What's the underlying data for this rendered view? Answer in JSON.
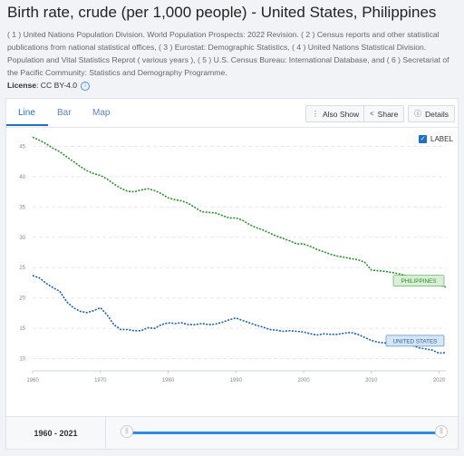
{
  "page": {
    "title": "Birth rate, crude (per 1,000 people) - United States, Philippines",
    "sources": "( 1 ) United Nations Population Division. World Population Prospects: 2022 Revision. ( 2 ) Census reports and other statistical publications from national statistical offices, ( 3 ) Eurostat: Demographic Statistics, ( 4 ) United Nations Statistical Division. Population and Vital Statistics Reprot ( various years ), ( 5 ) U.S. Census Bureau: International Database, and ( 6 ) Secretariat of the Pacific Community: Statistics and Demography Programme.",
    "license_label": "License",
    "license_value": ": CC BY-4.0"
  },
  "tabs": [
    {
      "label": "Line",
      "active": true
    },
    {
      "label": "Bar",
      "active": false
    },
    {
      "label": "Map",
      "active": false
    }
  ],
  "toolbar": {
    "also_show": "Also Show",
    "share": "Share",
    "details": "Details"
  },
  "label_toggle": {
    "text": "LABEL",
    "checked": true
  },
  "range": {
    "label": "1960 - 2021",
    "start": 1960,
    "end": 2021
  },
  "colors": {
    "accent": "#1f70c1",
    "philippines": "#2e8b2e",
    "united_states": "#1f5fa8",
    "philippines_label_bg": "#d8efd6",
    "us_label_bg": "#d6e6f5",
    "slider": "#2e8ce6"
  },
  "chart_data": {
    "type": "line",
    "title": "",
    "xlabel": "",
    "ylabel": "",
    "xlim": [
      1960,
      2021
    ],
    "ylim": [
      8,
      47
    ],
    "grid": true,
    "line_style": "dotted",
    "x_ticks": [
      1960,
      1970,
      1980,
      1990,
      2000,
      2010,
      2020
    ],
    "y_ticks": [
      10,
      15,
      20,
      25,
      30,
      35,
      40,
      45
    ],
    "series": [
      {
        "name": "PHILIPPINES",
        "color": "#2e8b2e",
        "x": [
          1960,
          1961,
          1962,
          1963,
          1964,
          1965,
          1966,
          1967,
          1968,
          1969,
          1970,
          1971,
          1972,
          1973,
          1974,
          1975,
          1976,
          1977,
          1978,
          1979,
          1980,
          1981,
          1982,
          1983,
          1984,
          1985,
          1986,
          1987,
          1988,
          1989,
          1990,
          1991,
          1992,
          1993,
          1994,
          1995,
          1996,
          1997,
          1998,
          1999,
          2000,
          2001,
          2002,
          2003,
          2004,
          2005,
          2006,
          2007,
          2008,
          2009,
          2010,
          2011,
          2012,
          2013,
          2014,
          2015,
          2016,
          2017,
          2018,
          2019,
          2020,
          2021
        ],
        "values": [
          46.5,
          46.0,
          45.4,
          44.7,
          44.1,
          43.3,
          42.5,
          41.7,
          41.0,
          40.5,
          40.2,
          39.6,
          38.8,
          38.1,
          37.6,
          37.5,
          37.8,
          38.0,
          37.7,
          37.2,
          36.5,
          36.2,
          36.0,
          35.6,
          34.9,
          34.2,
          34.1,
          34.0,
          33.6,
          33.2,
          33.2,
          32.8,
          32.1,
          31.6,
          31.2,
          30.7,
          30.2,
          29.8,
          29.4,
          28.9,
          28.9,
          28.5,
          28.0,
          27.6,
          27.2,
          26.9,
          26.7,
          26.5,
          26.3,
          25.9,
          24.6,
          24.5,
          24.4,
          24.2,
          24.0,
          23.7,
          23.4,
          23.0,
          22.7,
          22.4,
          22.1,
          21.8
        ]
      },
      {
        "name": "UNITED STATES",
        "color": "#1f5fa8",
        "x": [
          1960,
          1961,
          1962,
          1963,
          1964,
          1965,
          1966,
          1967,
          1968,
          1969,
          1970,
          1971,
          1972,
          1973,
          1974,
          1975,
          1976,
          1977,
          1978,
          1979,
          1980,
          1981,
          1982,
          1983,
          1984,
          1985,
          1986,
          1987,
          1988,
          1989,
          1990,
          1991,
          1992,
          1993,
          1994,
          1995,
          1996,
          1997,
          1998,
          1999,
          2000,
          2001,
          2002,
          2003,
          2004,
          2005,
          2006,
          2007,
          2008,
          2009,
          2010,
          2011,
          2012,
          2013,
          2014,
          2015,
          2016,
          2017,
          2018,
          2019,
          2020,
          2021
        ],
        "values": [
          23.7,
          23.3,
          22.4,
          21.7,
          21.1,
          19.4,
          18.4,
          17.8,
          17.6,
          17.9,
          18.4,
          17.2,
          15.6,
          14.8,
          14.8,
          14.6,
          14.6,
          15.1,
          15.0,
          15.6,
          15.9,
          15.8,
          15.9,
          15.6,
          15.6,
          15.8,
          15.6,
          15.7,
          16.0,
          16.4,
          16.7,
          16.3,
          15.9,
          15.5,
          15.2,
          14.8,
          14.7,
          14.5,
          14.6,
          14.5,
          14.4,
          14.1,
          13.9,
          14.1,
          14.0,
          14.0,
          14.2,
          14.3,
          14.0,
          13.5,
          13.0,
          12.7,
          12.6,
          12.4,
          12.5,
          12.4,
          12.2,
          11.8,
          11.6,
          11.4,
          10.9,
          11.0
        ]
      }
    ]
  }
}
